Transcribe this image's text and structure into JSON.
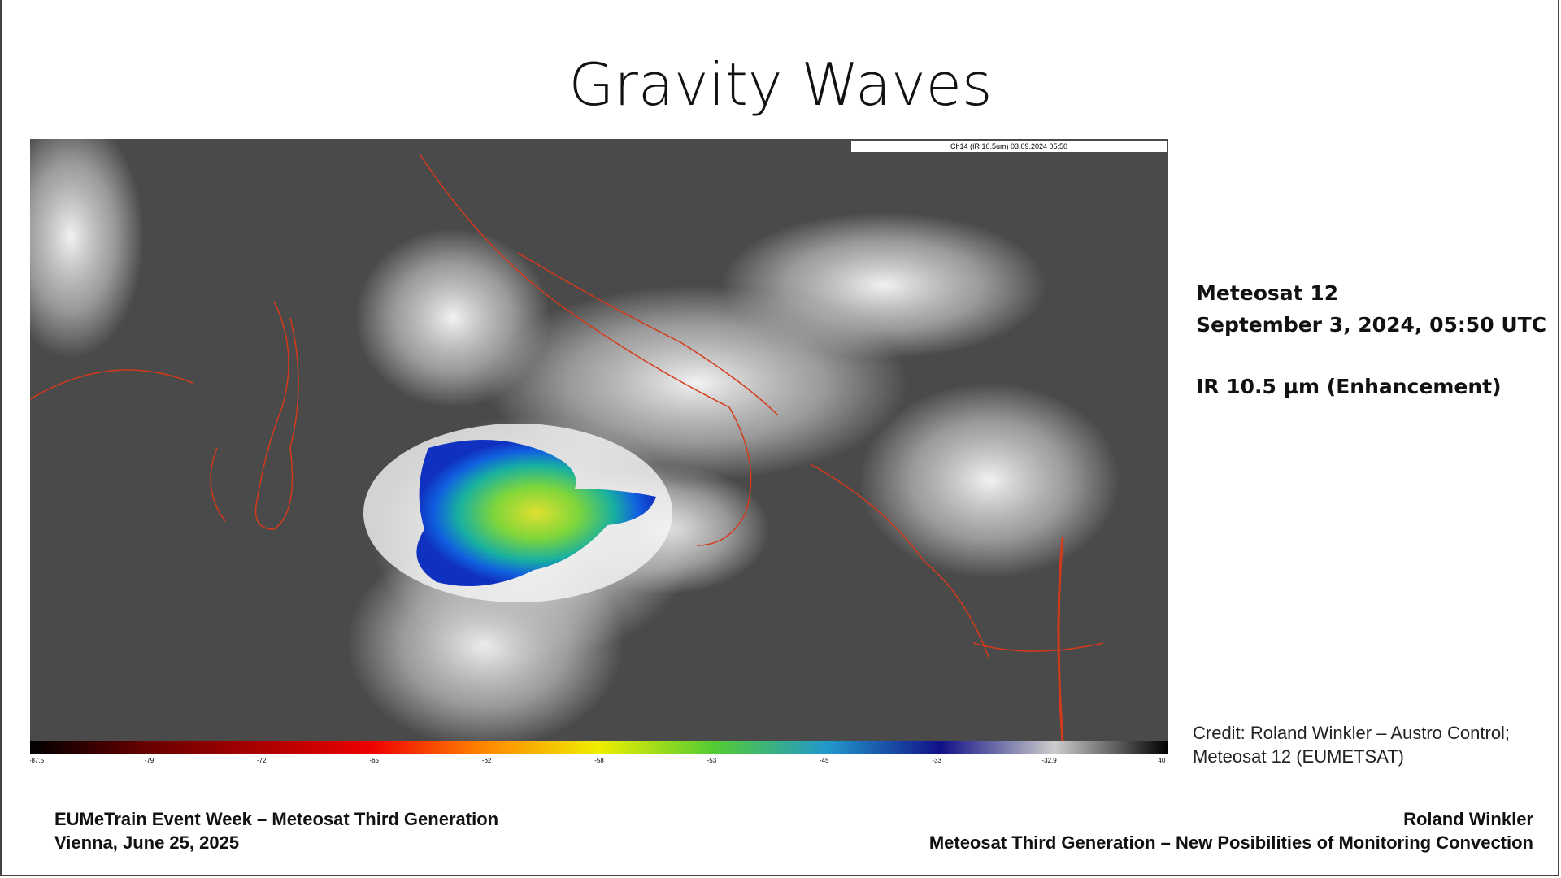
{
  "slide": {
    "title": "Gravity Waves",
    "image": {
      "label": "Ch14 (IR 10.5um)  03.09.2024 05:50",
      "colorbar_labels": [
        "-87.5",
        "-79",
        "-72",
        "-65",
        "-62",
        "-58",
        "-53",
        "-45",
        "-33",
        "-32.9",
        "40"
      ]
    },
    "info": [
      "Meteosat 12",
      "September 3, 2024, 05:50 UTC",
      "IR 10.5 µm (Enhancement)"
    ],
    "credit": [
      "Credit: Roland Winkler – Austro Control;",
      "Meteosat 12 (EUMETSAT)"
    ],
    "footer_left": [
      "EUMeTrain Event Week – Meteosat Third Generation",
      "Vienna, June 25, 2025"
    ],
    "footer_right": [
      "Roland Winkler",
      "Meteosat Third Generation – New Posibilities of Monitoring Convection"
    ]
  }
}
